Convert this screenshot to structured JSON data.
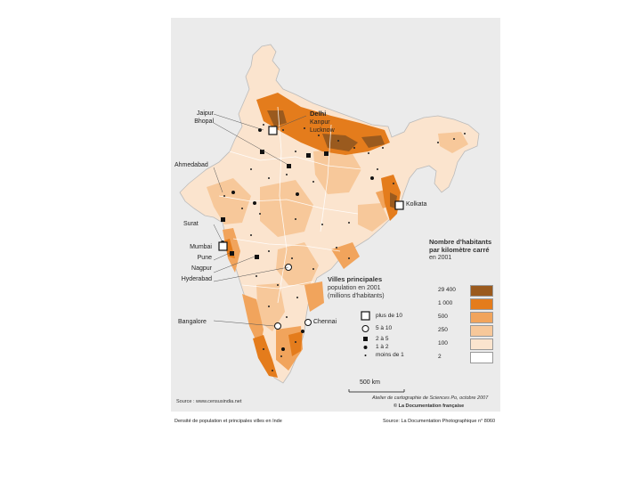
{
  "map": {
    "cities": {
      "jaipur": "Jaipur",
      "bhopal": "Bhopal",
      "delhi": "Delhi",
      "kanpur": "Kanpur",
      "lucknow": "Lucknow",
      "ahmedabad": "Ahmedabad",
      "kolkata": "Kolkata",
      "surat": "Surat",
      "mumbai": "Mumbai",
      "pune": "Pune",
      "nagpur": "Nagpur",
      "hyderabad": "Hyderabad",
      "bangalore": "Bangalore",
      "chennai": "Chennai"
    },
    "density_legend": {
      "title_line1": "Nombre d'habitants",
      "title_line2": "par kilomètre carré",
      "title_line3": "en 2001",
      "classes": [
        {
          "label": "29 400",
          "color": "#9a5a1e"
        },
        {
          "label": "1 000",
          "color": "#e47c1c"
        },
        {
          "label": "500",
          "color": "#f1a45c"
        },
        {
          "label": "250",
          "color": "#f7c89a"
        },
        {
          "label": "100",
          "color": "#fbe4ce"
        },
        {
          "label": "2",
          "color": "#ffffff"
        }
      ]
    },
    "cities_legend": {
      "title": "Villes principales",
      "sub_line1": "population en 2001",
      "sub_line2": "(millions d'habitants)",
      "items": [
        {
          "label": "plus de 10",
          "symbol": "square-open"
        },
        {
          "label": "5 à 10",
          "symbol": "circle-open"
        },
        {
          "label": "2 à 5",
          "symbol": "square-filled"
        },
        {
          "label": "1 à 2",
          "symbol": "circle-filled"
        },
        {
          "label": "moins de 1",
          "symbol": "dot"
        }
      ]
    },
    "scale_label": "500 km",
    "source_left": "Source : www.censusindia.net",
    "credit_line1": "Atelier de cartographie de Sciences Po, octobre 2007",
    "credit_line2": "© La Documentation française"
  },
  "captions": {
    "left": "Densité de population et principales villes en Inde",
    "right": "Source: La Documentation Photographique n° 8060"
  },
  "colors": {
    "background": "#ebebeb",
    "dense": "#9a5a1e",
    "high": "#e47c1c"
  }
}
